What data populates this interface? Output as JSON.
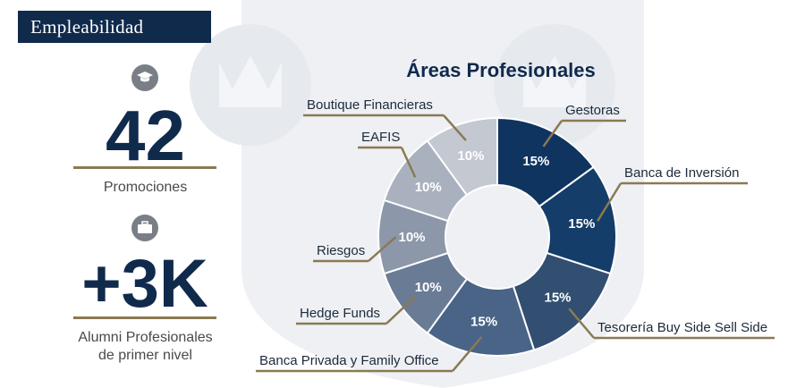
{
  "header": {
    "tag_label": "Empleabilidad"
  },
  "stats": [
    {
      "value": "42",
      "label": "Promociones",
      "icon": "graduation-cap-icon"
    },
    {
      "value": "+3K",
      "label_line1": "Alumni Profesionales",
      "label_line2": "de primer nivel",
      "icon": "briefcase-icon"
    }
  ],
  "chart_data": {
    "type": "pie",
    "donut": true,
    "title": "Áreas Profesionales",
    "categories": [
      "Gestoras",
      "Banca de Inversión",
      "Tesorería Buy Side Sell Side",
      "Banca Privada y Family Office",
      "Hedge Funds",
      "Riesgos",
      "EAFIS",
      "Boutique Financieras"
    ],
    "values": [
      15,
      15,
      15,
      15,
      10,
      10,
      10,
      10
    ],
    "value_labels": [
      "15%",
      "15%",
      "15%",
      "15%",
      "10%",
      "10%",
      "10%",
      "10%"
    ],
    "colors": [
      "#0f3460",
      "#143d69",
      "#324f72",
      "#4a6487",
      "#6a7b95",
      "#8c97aa",
      "#a9b1bf",
      "#c3c8d1"
    ]
  }
}
